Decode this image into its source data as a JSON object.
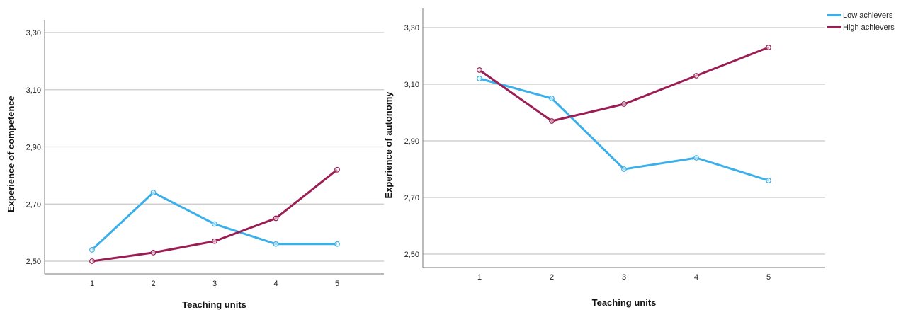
{
  "colors": {
    "low": "#3aafe9",
    "high": "#9b1d54",
    "grid": "#c8c8c8",
    "axis": "#777777"
  },
  "legend": [
    {
      "label": "Low achievers",
      "color": "#3aafe9"
    },
    {
      "label": "High achievers",
      "color": "#9b1d54"
    }
  ],
  "chart_data": [
    {
      "type": "line",
      "xlabel": "Teaching units",
      "ylabel": "Experience of competence",
      "categories": [
        "1",
        "2",
        "3",
        "4",
        "5"
      ],
      "yticks": [
        "2,50",
        "2,70",
        "2,90",
        "3,10",
        "3,30"
      ],
      "ylim": [
        2.45,
        3.35
      ],
      "grid": true,
      "series": [
        {
          "name": "Low achievers",
          "color": "#3aafe9",
          "values": [
            2.54,
            2.74,
            2.63,
            2.56,
            2.56
          ]
        },
        {
          "name": "High achievers",
          "color": "#9b1d54",
          "values": [
            2.5,
            2.53,
            2.57,
            2.65,
            2.82
          ]
        }
      ]
    },
    {
      "type": "line",
      "xlabel": "Teaching units",
      "ylabel": "Experience of autonomy",
      "categories": [
        "1",
        "2",
        "3",
        "4",
        "5"
      ],
      "yticks": [
        "2,50",
        "2,70",
        "2,90",
        "3,10",
        "3,30"
      ],
      "ylim": [
        2.45,
        3.37
      ],
      "grid": true,
      "legend_position": "top-right",
      "series": [
        {
          "name": "Low achievers",
          "color": "#3aafe9",
          "values": [
            3.12,
            3.05,
            2.8,
            2.84,
            2.76
          ]
        },
        {
          "name": "High achievers",
          "color": "#9b1d54",
          "values": [
            3.15,
            2.97,
            3.03,
            3.13,
            3.23
          ]
        }
      ]
    }
  ]
}
